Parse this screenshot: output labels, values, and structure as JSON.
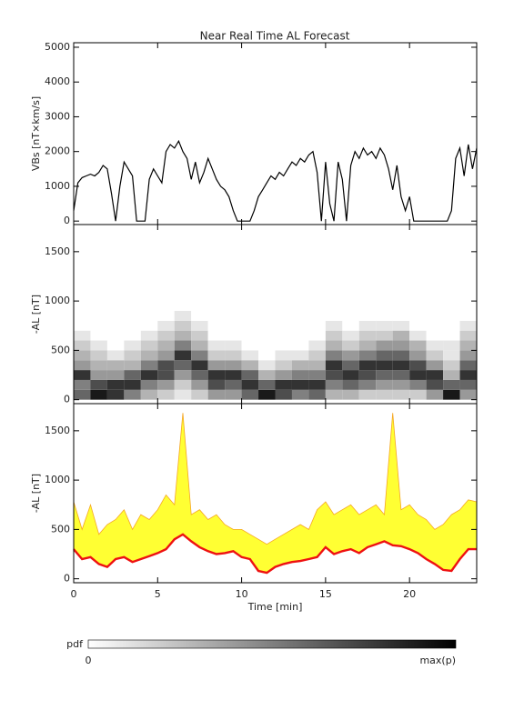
{
  "chart_data": [
    {
      "type": "line",
      "title": "Near Real Time AL Forecast",
      "ylabel": "VBs [nT×km/s]",
      "xlim": [
        0,
        24
      ],
      "xticks": [
        0,
        5,
        10,
        15,
        20
      ],
      "ylim": [
        -100,
        5130
      ],
      "yticks": [
        0,
        1000,
        2000,
        3000,
        4000,
        5000
      ],
      "x": [
        0,
        0.25,
        0.5,
        0.75,
        1,
        1.25,
        1.5,
        1.75,
        2,
        2.25,
        2.5,
        2.75,
        3,
        3.25,
        3.5,
        3.75,
        4,
        4.25,
        4.5,
        4.75,
        5,
        5.25,
        5.5,
        5.75,
        6,
        6.25,
        6.5,
        6.75,
        7,
        7.25,
        7.5,
        7.75,
        8,
        8.25,
        8.5,
        8.75,
        9,
        9.25,
        9.5,
        9.75,
        10,
        10.25,
        10.5,
        10.75,
        11,
        11.25,
        11.5,
        11.75,
        12,
        12.25,
        12.5,
        12.75,
        13,
        13.25,
        13.5,
        13.75,
        14,
        14.25,
        14.5,
        14.75,
        15,
        15.25,
        15.5,
        15.75,
        16,
        16.25,
        16.5,
        16.75,
        17,
        17.25,
        17.5,
        17.75,
        18,
        18.25,
        18.5,
        18.75,
        19,
        19.25,
        19.5,
        19.75,
        20,
        20.25,
        20.5,
        20.75,
        21,
        21.25,
        21.5,
        21.75,
        22,
        22.25,
        22.5,
        22.75,
        23,
        23.25,
        23.5,
        23.75,
        24
      ],
      "series": [
        {
          "color": "#000000",
          "values": [
            300,
            1100,
            1250,
            1300,
            1350,
            1300,
            1400,
            1600,
            1500,
            800,
            0,
            1000,
            1700,
            1500,
            1300,
            0,
            0,
            0,
            1200,
            1500,
            1300,
            1100,
            2000,
            2200,
            2100,
            2300,
            2000,
            1800,
            1200,
            1700,
            1100,
            1400,
            1800,
            1500,
            1200,
            1000,
            900,
            700,
            300,
            0,
            0,
            0,
            0,
            300,
            700,
            900,
            1100,
            1300,
            1200,
            1400,
            1300,
            1500,
            1700,
            1600,
            1800,
            1700,
            1900,
            2000,
            1400,
            0,
            1700,
            500,
            0,
            1700,
            1200,
            0,
            1600,
            2000,
            1800,
            2100,
            1900,
            2000,
            1800,
            2100,
            1900,
            1500,
            900,
            1600,
            700,
            300,
            700,
            0,
            0,
            0,
            0,
            0,
            0,
            0,
            0,
            0,
            300,
            1800,
            2100,
            1300,
            2200,
            1500,
            2100
          ]
        }
      ]
    },
    {
      "type": "heatmap",
      "ylabel": "-AL [nT]",
      "xlim": [
        0,
        24
      ],
      "xticks": [
        0,
        5,
        10,
        15,
        20
      ],
      "ylim": [
        -40,
        1775
      ],
      "yticks": [
        0,
        500,
        1000,
        1500
      ],
      "x_edges": [
        0,
        1,
        2,
        3,
        4,
        5,
        6,
        7,
        8,
        9,
        10,
        11,
        12,
        13,
        14,
        15,
        16,
        17,
        18,
        19,
        20,
        21,
        22,
        23,
        24
      ],
      "y_edges": [
        0,
        100,
        200,
        300,
        400,
        500,
        600,
        700,
        800,
        900
      ],
      "pdf": [
        [
          0.6,
          0.5,
          0.8,
          0.4,
          0.3,
          0.2,
          0.1,
          0,
          0
        ],
        [
          0.9,
          0.7,
          0.4,
          0.3,
          0.2,
          0.1,
          0,
          0,
          0
        ],
        [
          0.8,
          0.8,
          0.4,
          0.3,
          0.1,
          0,
          0,
          0,
          0
        ],
        [
          0.5,
          0.8,
          0.6,
          0.3,
          0.2,
          0.1,
          0,
          0,
          0
        ],
        [
          0.3,
          0.5,
          0.8,
          0.5,
          0.3,
          0.2,
          0.1,
          0,
          0
        ],
        [
          0.2,
          0.4,
          0.7,
          0.7,
          0.4,
          0.3,
          0.2,
          0.1,
          0
        ],
        [
          0.1,
          0.2,
          0.4,
          0.6,
          0.8,
          0.5,
          0.3,
          0.2,
          0.1
        ],
        [
          0.2,
          0.4,
          0.6,
          0.8,
          0.5,
          0.3,
          0.2,
          0.1,
          0
        ],
        [
          0.4,
          0.7,
          0.8,
          0.4,
          0.2,
          0.1,
          0,
          0,
          0
        ],
        [
          0.4,
          0.6,
          0.8,
          0.4,
          0.2,
          0.1,
          0,
          0,
          0
        ],
        [
          0.6,
          0.8,
          0.6,
          0.3,
          0.1,
          0,
          0,
          0,
          0
        ],
        [
          0.9,
          0.6,
          0.3,
          0.1,
          0,
          0,
          0,
          0,
          0
        ],
        [
          0.7,
          0.8,
          0.4,
          0.2,
          0.1,
          0,
          0,
          0,
          0
        ],
        [
          0.5,
          0.8,
          0.5,
          0.3,
          0.1,
          0,
          0,
          0,
          0
        ],
        [
          0.6,
          0.8,
          0.5,
          0.3,
          0.2,
          0.1,
          0,
          0,
          0
        ],
        [
          0.3,
          0.5,
          0.7,
          0.8,
          0.5,
          0.3,
          0.2,
          0.1,
          0
        ],
        [
          0.3,
          0.6,
          0.8,
          0.6,
          0.4,
          0.2,
          0.1,
          0,
          0
        ],
        [
          0.2,
          0.5,
          0.7,
          0.8,
          0.5,
          0.3,
          0.2,
          0.1,
          0
        ],
        [
          0.2,
          0.4,
          0.6,
          0.8,
          0.6,
          0.4,
          0.2,
          0.1,
          0
        ],
        [
          0.2,
          0.4,
          0.6,
          0.8,
          0.6,
          0.4,
          0.3,
          0.1,
          0
        ],
        [
          0.2,
          0.5,
          0.8,
          0.7,
          0.4,
          0.3,
          0.1,
          0,
          0
        ],
        [
          0.4,
          0.7,
          0.8,
          0.4,
          0.2,
          0.1,
          0,
          0,
          0
        ],
        [
          0.9,
          0.6,
          0.3,
          0.2,
          0.1,
          0.1,
          0,
          0,
          0
        ],
        [
          0.4,
          0.6,
          0.8,
          0.6,
          0.4,
          0.3,
          0.2,
          0.1,
          0
        ]
      ],
      "colorbar": {
        "label": "pdf",
        "min_label": "0",
        "max_label": "max(p)"
      }
    },
    {
      "type": "band",
      "ylabel": "-AL [nT]",
      "xlabel": "Time [min]",
      "xlim": [
        0,
        24
      ],
      "xticks": [
        0,
        5,
        10,
        15,
        20
      ],
      "ylim": [
        -40,
        1775
      ],
      "yticks": [
        0,
        500,
        1000,
        1500
      ],
      "x": [
        0,
        0.5,
        1,
        1.5,
        2,
        2.5,
        3,
        3.5,
        4,
        4.5,
        5,
        5.5,
        6,
        6.5,
        7,
        7.5,
        8,
        8.5,
        9,
        9.5,
        10,
        10.5,
        11,
        11.5,
        12,
        12.5,
        13,
        13.5,
        14,
        14.5,
        15,
        15.5,
        16,
        16.5,
        17,
        17.5,
        18,
        18.5,
        19,
        19.5,
        20,
        20.5,
        21,
        21.5,
        22,
        22.5,
        23,
        23.5,
        24
      ],
      "band_color": "#ffff33",
      "series": [
        {
          "color": "#f5a623",
          "values": [
            780,
            500,
            750,
            450,
            550,
            600,
            700,
            500,
            650,
            600,
            700,
            850,
            750,
            1680,
            650,
            700,
            600,
            650,
            550,
            500,
            500,
            450,
            400,
            350,
            400,
            450,
            500,
            550,
            500,
            700,
            780,
            650,
            700,
            750,
            650,
            700,
            750,
            650,
            1680,
            700,
            750,
            650,
            600,
            500,
            550,
            650,
            700,
            800,
            780
          ]
        },
        {
          "color": "#ee1111",
          "values": [
            300,
            200,
            220,
            150,
            120,
            200,
            220,
            170,
            200,
            230,
            260,
            300,
            400,
            450,
            380,
            320,
            280,
            250,
            260,
            280,
            220,
            200,
            80,
            60,
            120,
            150,
            170,
            180,
            200,
            220,
            320,
            250,
            280,
            300,
            260,
            320,
            350,
            380,
            340,
            330,
            300,
            260,
            200,
            150,
            90,
            80,
            200,
            300,
            300
          ]
        }
      ]
    }
  ]
}
